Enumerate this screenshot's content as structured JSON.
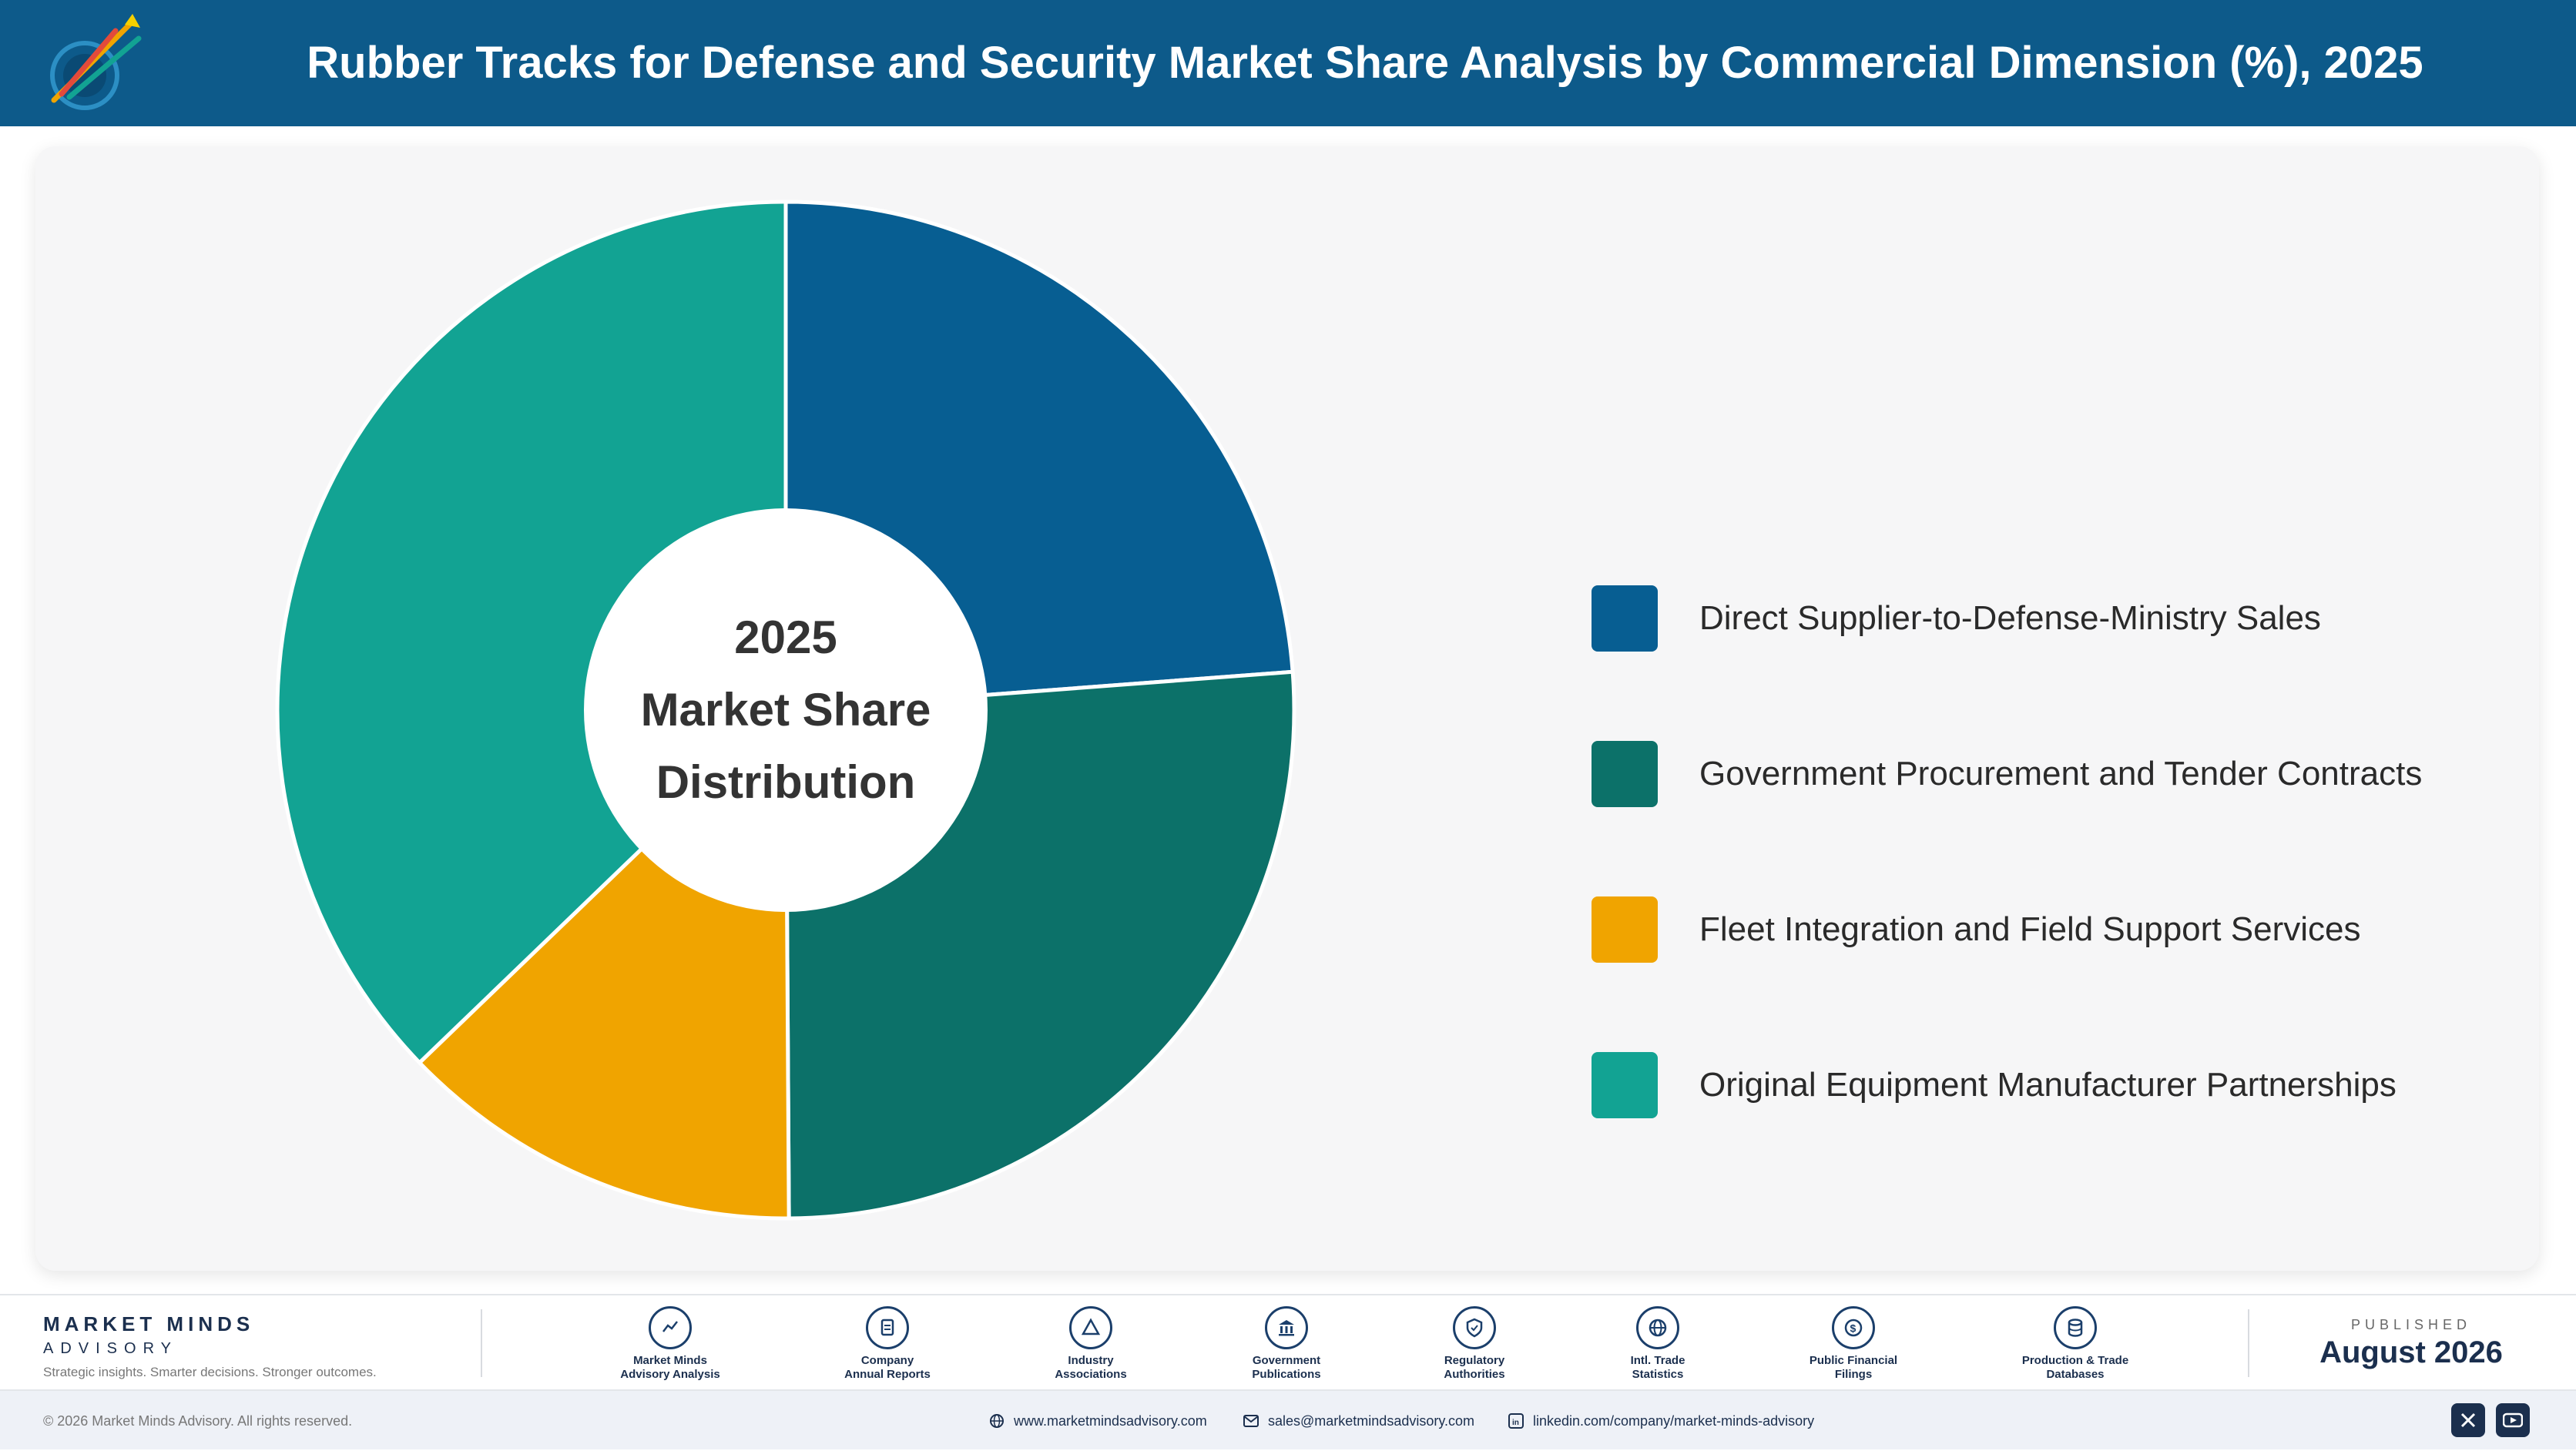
{
  "header": {
    "title": "Rubber Tracks for Defense and Security Market Share Analysis by Commercial Dimension (%), 2025"
  },
  "chart_data": {
    "type": "pie",
    "title": "Rubber Tracks for Defense and Security Market Share Analysis by Commercial Dimension (%), 2025",
    "center_label": [
      "2025",
      "Market Share",
      "Distribution"
    ],
    "categories": [
      "Direct Supplier-to-Defense-Ministry Sales",
      "Government Procurement and Tender Contracts",
      "Fleet Integration and Field Support Services",
      "Original Equipment Manufacturer Partnerships"
    ],
    "values": [
      23.8,
      26.1,
      12.9,
      37.2
    ],
    "colors": [
      "#075e92",
      "#0c7169",
      "#f0a400",
      "#12a393"
    ],
    "legend_position": "right"
  },
  "footer": {
    "brand_name": "MARKET MINDS",
    "brand_sub": "ADVISORY",
    "brand_tagline": "Strategic insights. Smarter decisions. Stronger outcomes.",
    "sources": [
      {
        "label": "Market Minds\nAdvisory Analysis",
        "icon": "trend-icon"
      },
      {
        "label": "Company\nAnnual Reports",
        "icon": "document-icon"
      },
      {
        "label": "Industry\nAssociations",
        "icon": "network-icon"
      },
      {
        "label": "Government\nPublications",
        "icon": "building-icon"
      },
      {
        "label": "Regulatory\nAuthorities",
        "icon": "shield-icon"
      },
      {
        "label": "Intl. Trade\nStatistics",
        "icon": "globe-icon"
      },
      {
        "label": "Public Financial\nFilings",
        "icon": "coin-icon"
      },
      {
        "label": "Production & Trade\nDatabases",
        "icon": "database-icon"
      }
    ],
    "published_label": "PUBLISHED",
    "published_date": "August 2026"
  },
  "bottom": {
    "copyright": "© 2026 Market Minds Advisory. All rights reserved.",
    "website": "www.marketmindsadvisory.com",
    "email": "sales@marketmindsadvisory.com",
    "linkedin": "linkedin.com/company/market-minds-advisory"
  }
}
